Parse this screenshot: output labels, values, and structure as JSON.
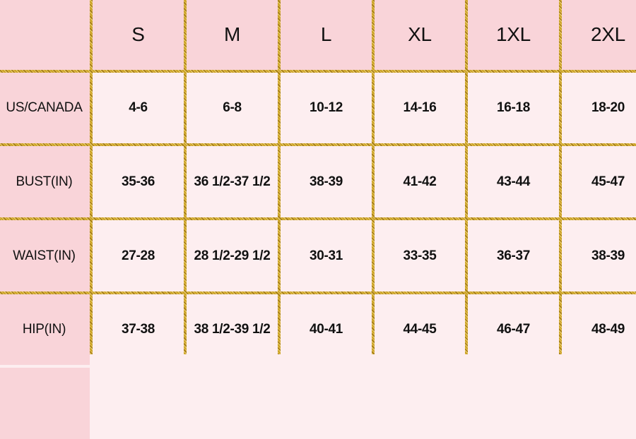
{
  "table": {
    "headers": [
      "",
      "S",
      "M",
      "L",
      "XL",
      "1XL",
      "2XL"
    ],
    "rows": [
      {
        "label": "US/CANADA",
        "values": [
          "4-6",
          "6-8",
          "10-12",
          "14-16",
          "16-18",
          "18-20"
        ]
      },
      {
        "label": "BUST(IN)",
        "values": [
          "35-36",
          "36 1/2-37 1/2",
          "38-39",
          "41-42",
          "43-44",
          "45-47"
        ]
      },
      {
        "label": "WAIST(IN)",
        "values": [
          "27-28",
          "28 1/2-29 1/2",
          "30-31",
          "33-35",
          "36-37",
          "38-39"
        ]
      },
      {
        "label": "HIP(IN)",
        "values": [
          "37-38",
          "38 1/2-39 1/2",
          "40-41",
          "44-45",
          "46-47",
          "48-49"
        ]
      }
    ]
  },
  "colors": {
    "header_bg": "#f9d4d9",
    "cell_bg": "#fdeef0",
    "border": "#c9a227"
  }
}
